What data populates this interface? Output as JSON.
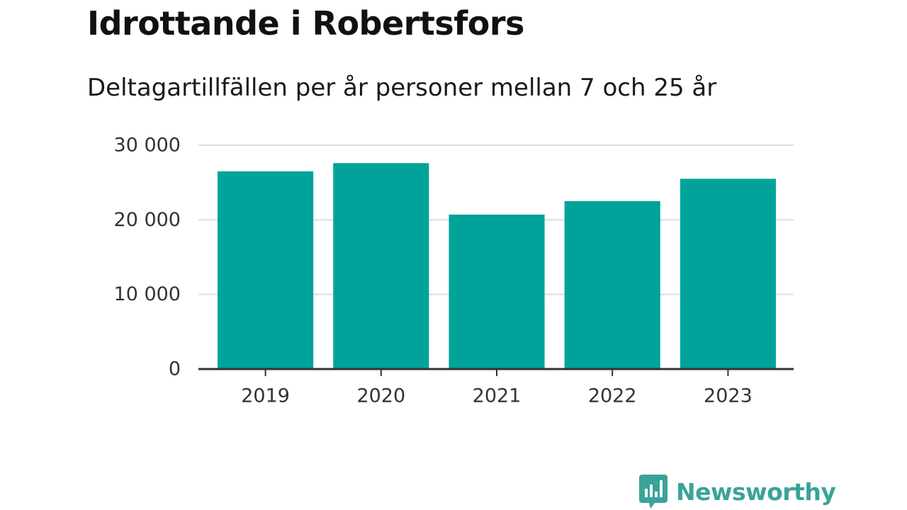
{
  "header": {
    "title": "Idrottande i Robertsfors",
    "subtitle": "Deltagartillfällen per år personer mellan 7 och 25 år"
  },
  "brand": {
    "name": "Newsworthy"
  },
  "colors": {
    "bar": "#00a39a",
    "grid": "#dddddd",
    "axis": "#333333",
    "brand": "#3aa39a"
  },
  "chart_data": {
    "type": "bar",
    "title": "Idrottande i Robertsfors",
    "subtitle": "Deltagartillfällen per år personer mellan 7 och 25 år",
    "categories": [
      "2019",
      "2020",
      "2021",
      "2022",
      "2023"
    ],
    "values": [
      26500,
      27600,
      20700,
      22500,
      25500
    ],
    "ylim": [
      0,
      30000
    ],
    "yticks": [
      0,
      10000,
      20000,
      30000
    ],
    "ytick_labels": [
      "0",
      "10 000",
      "20 000",
      "30 000"
    ],
    "xlabel": "",
    "ylabel": "",
    "grid": true,
    "legend": "none"
  }
}
